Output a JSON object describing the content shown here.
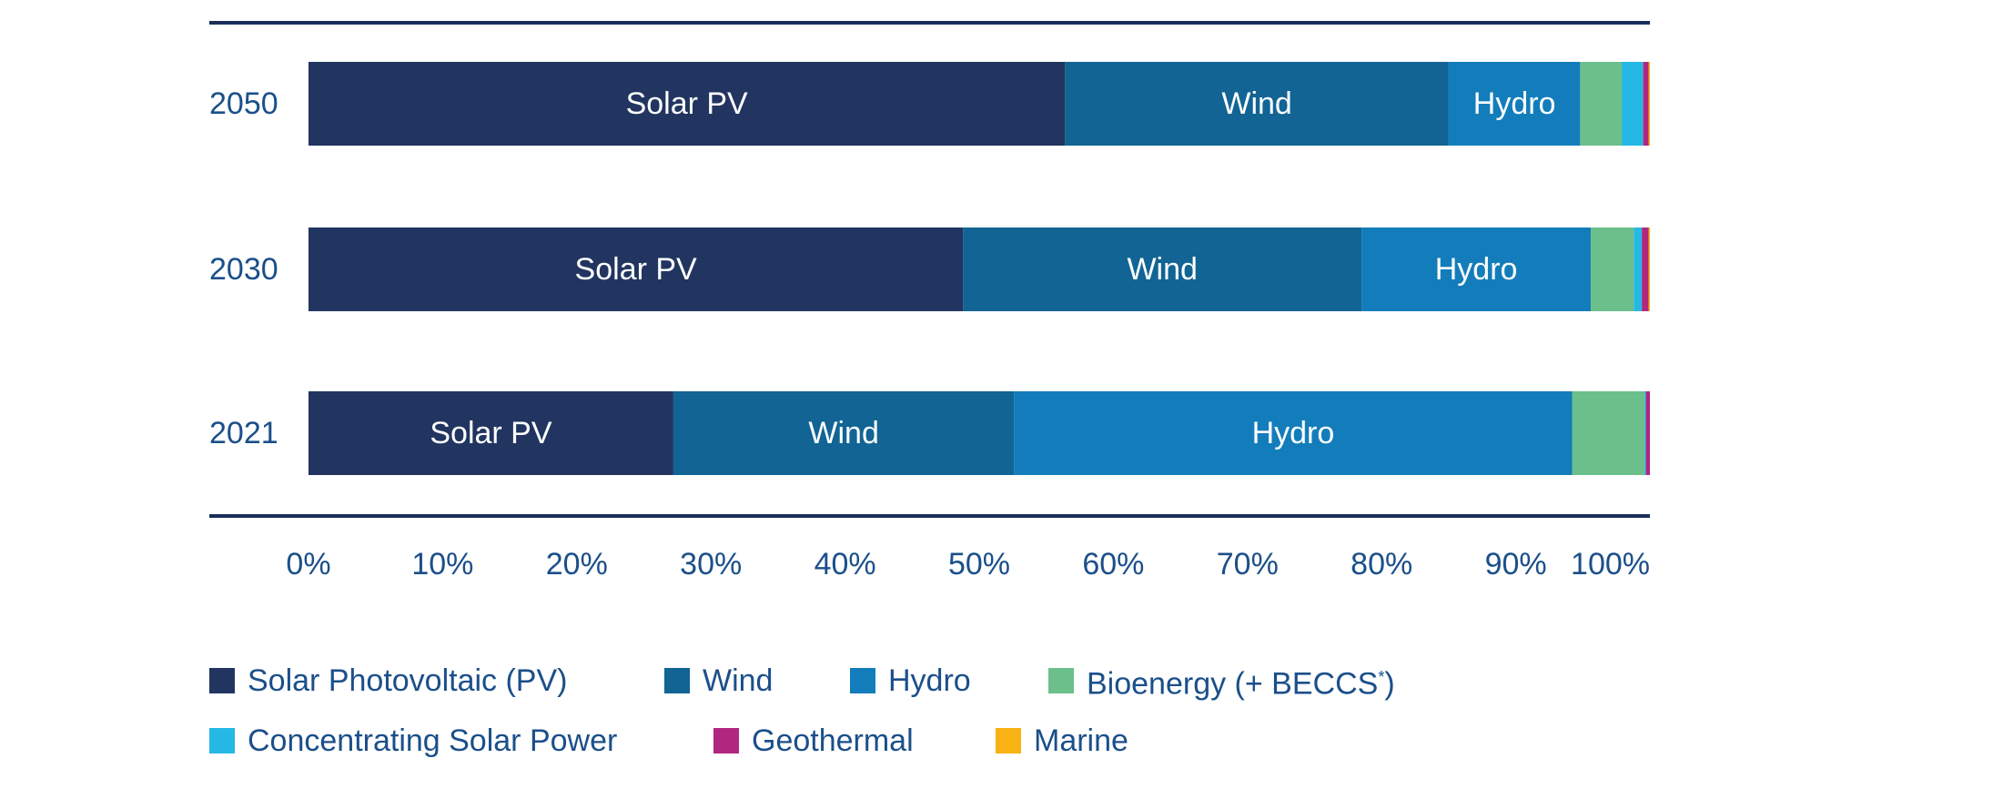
{
  "colors": {
    "solar_pv": "#213560",
    "wind": "#116494",
    "hydro": "#137dbb",
    "bioenergy": "#6bbf8a",
    "csp": "#25b8e4",
    "geothermal": "#b1267f",
    "marine": "#f8b214",
    "axis_text": "#1b4f8a",
    "rule": "#1a2f5a"
  },
  "chart_data": {
    "type": "bar",
    "orientation": "horizontal",
    "stacked": true,
    "categories": [
      "2050",
      "2030",
      "2021"
    ],
    "series": [
      {
        "name": "Solar Photovoltaic (PV)",
        "key": "solar_pv",
        "bar_label": "Solar PV",
        "values": [
          56.4,
          48.8,
          27.2
        ]
      },
      {
        "name": "Wind",
        "key": "wind",
        "bar_label": "Wind",
        "values": [
          28.6,
          29.7,
          25.4
        ]
      },
      {
        "name": "Hydro",
        "key": "hydro",
        "bar_label": "Hydro",
        "values": [
          9.8,
          17.1,
          41.6
        ]
      },
      {
        "name": "Bioenergy (+ BECCS*)",
        "key": "bioenergy",
        "bar_label": "",
        "values": [
          3.1,
          3.2,
          5.4
        ]
      },
      {
        "name": "Concentrating Solar Power",
        "key": "csp",
        "bar_label": "",
        "values": [
          1.6,
          0.6,
          0.1
        ]
      },
      {
        "name": "Geothermal",
        "key": "geothermal",
        "bar_label": "",
        "values": [
          0.4,
          0.5,
          0.3
        ]
      },
      {
        "name": "Marine",
        "key": "marine",
        "bar_label": "",
        "values": [
          0.1,
          0.1,
          0.0
        ]
      }
    ],
    "xlim": [
      0,
      100
    ],
    "x_ticks": [
      "0%",
      "10%",
      "20%",
      "30%",
      "40%",
      "50%",
      "60%",
      "70%",
      "80%",
      "90%",
      "100%"
    ],
    "grid": false,
    "legend_position": "bottom"
  },
  "legend": {
    "solar_pv": "Solar Photovoltaic (PV)",
    "wind": "Wind",
    "hydro": "Hydro",
    "bioenergy": "Bioenergy (+ BECCS",
    "bioenergy_sup": "*",
    "bioenergy_close": ")",
    "csp": "Concentrating Solar Power",
    "geothermal": "Geothermal",
    "marine": "Marine"
  }
}
